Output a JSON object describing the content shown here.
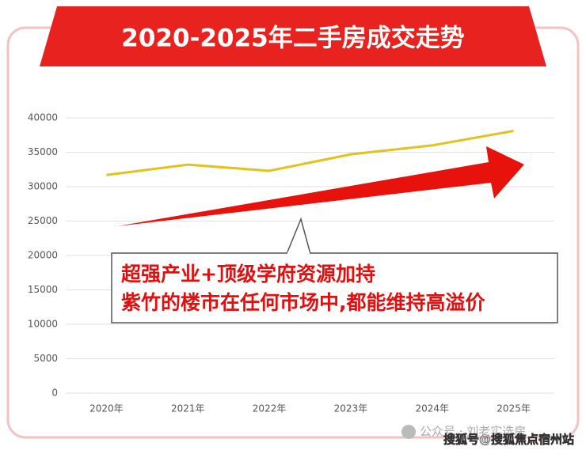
{
  "chart_data": {
    "type": "line",
    "title": "2020-2025年二手房成交走势",
    "categories": [
      "2020年",
      "2021年",
      "2022年",
      "2023年",
      "2024年",
      "2025年"
    ],
    "values": [
      31700,
      33200,
      32300,
      34700,
      36000,
      38100
    ],
    "color": "#e3c11f",
    "ylim": [
      0,
      40000
    ],
    "yticks": [
      0,
      5000,
      10000,
      15000,
      20000,
      25000,
      30000,
      35000,
      40000
    ],
    "grid": true,
    "annotations": [
      "超强产业+顶级学府资源加持",
      "紫竹的楼市在任何市场中,都能维持高溢价"
    ],
    "watermarks": [
      "公众号 · 刘老实选房",
      "搜狐号@搜狐焦点宿州站"
    ]
  }
}
